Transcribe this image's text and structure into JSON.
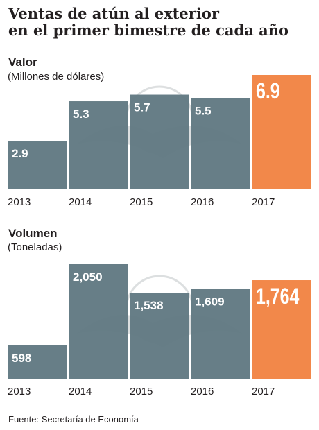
{
  "title_line1": "Ventas de atún al exterior",
  "title_line2": "en el primer bimestre de cada año",
  "source": "Fuente: Secretaría de Economía",
  "colors": {
    "bar": "#5f7781",
    "highlight": "#f2884a",
    "baseline": "#7f7f7f",
    "watermark": "#d9dcdd",
    "text": "#231f20"
  },
  "chart_data": [
    {
      "type": "bar",
      "title": "Valor",
      "subtitle": "(Millones de dólares)",
      "categories": [
        "2013",
        "2014",
        "2015",
        "2016",
        "2017"
      ],
      "values": [
        2.9,
        5.3,
        5.7,
        5.5,
        6.9
      ],
      "value_labels": [
        "2.9",
        "5.3",
        "5.7",
        "5.5",
        "6.9"
      ],
      "highlight_index": 4,
      "ylim": [
        0,
        6.9
      ],
      "grid": false,
      "legend": "none"
    },
    {
      "type": "bar",
      "title": "Volumen",
      "subtitle": "(Toneladas)",
      "categories": [
        "2013",
        "2014",
        "2015",
        "2016",
        "2017"
      ],
      "values": [
        598,
        2050,
        1538,
        1609,
        1764
      ],
      "value_labels": [
        "598",
        "2,050",
        "1,538",
        "1,609",
        "1,764"
      ],
      "highlight_index": 4,
      "ylim": [
        0,
        2050
      ],
      "grid": false,
      "legend": "none"
    }
  ]
}
